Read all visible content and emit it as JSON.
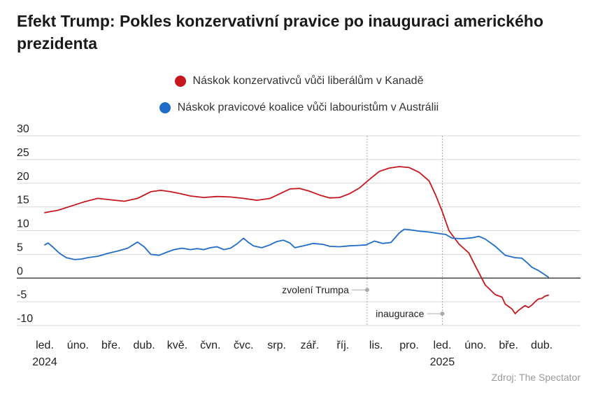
{
  "title": "Efekt Trump: Pokles konzervativní pravice po inauguraci amerického prezidenta",
  "source": "Zdroj: The Spectator",
  "colors": {
    "canada": "#c8161d",
    "australia": "#1f6dc9",
    "grid": "#d9d9d9",
    "zero": "#222222"
  },
  "chart_data": {
    "type": "line",
    "title": "Efekt Trump: Pokles konzervativní pravice po inauguraci amerického prezidenta",
    "ylim": [
      -10,
      30
    ],
    "yticks": [
      -10,
      -5,
      0,
      5,
      10,
      15,
      20,
      25,
      30
    ],
    "ytick_labels": [
      "-10",
      "-5",
      "0",
      "5",
      "10",
      "15",
      "20",
      "25",
      "30"
    ],
    "x_unit": "months since Jan 2024",
    "xlim": [
      0,
      15.3
    ],
    "xticks": [
      {
        "x": 0,
        "label": "led.",
        "year": "2024"
      },
      {
        "x": 1,
        "label": "úno."
      },
      {
        "x": 2,
        "label": "bře."
      },
      {
        "x": 3,
        "label": "dub."
      },
      {
        "x": 4,
        "label": "kvě."
      },
      {
        "x": 5,
        "label": "čvn."
      },
      {
        "x": 6,
        "label": "čvc."
      },
      {
        "x": 7,
        "label": "srp."
      },
      {
        "x": 8,
        "label": "zář."
      },
      {
        "x": 9,
        "label": "říj."
      },
      {
        "x": 10,
        "label": "lis."
      },
      {
        "x": 11,
        "label": "pro."
      },
      {
        "x": 12,
        "label": "led.",
        "year": "2025"
      },
      {
        "x": 13,
        "label": "úno."
      },
      {
        "x": 14,
        "label": "bře."
      },
      {
        "x": 15,
        "label": "dub."
      }
    ],
    "events": [
      {
        "x": 9.73,
        "label": "zvolení Trumpa",
        "y": -2.5
      },
      {
        "x": 12.0,
        "label": "inaugurace",
        "y": -7.5
      }
    ],
    "series": [
      {
        "name": "Náskok konzervativců vůči liberálům v Kanadě",
        "color": "#c8161d",
        "x": [
          0,
          0.4,
          0.8,
          1.2,
          1.6,
          2.0,
          2.4,
          2.8,
          3.2,
          3.5,
          3.8,
          4.1,
          4.4,
          4.8,
          5.2,
          5.6,
          6.0,
          6.4,
          6.8,
          7.1,
          7.4,
          7.7,
          8.0,
          8.3,
          8.6,
          8.9,
          9.2,
          9.5,
          9.8,
          10.1,
          10.4,
          10.7,
          11.0,
          11.3,
          11.6,
          11.8,
          12.0,
          12.2,
          12.5,
          12.8,
          13.0,
          13.3,
          13.6,
          13.8,
          13.9,
          14.0,
          14.1,
          14.2,
          14.3,
          14.4,
          14.5,
          14.6,
          14.7,
          14.8,
          14.9,
          15.0,
          15.1,
          15.2
        ],
        "values": [
          13.8,
          14.3,
          15.2,
          16.1,
          16.8,
          16.5,
          16.2,
          16.8,
          18.2,
          18.5,
          18.2,
          17.8,
          17.3,
          17.0,
          17.2,
          17.1,
          16.8,
          16.4,
          16.8,
          17.8,
          18.8,
          18.9,
          18.3,
          17.5,
          16.9,
          17.0,
          17.8,
          19.0,
          20.8,
          22.5,
          23.2,
          23.5,
          23.3,
          22.3,
          20.5,
          17.5,
          14.0,
          10.0,
          7.2,
          5.3,
          2.5,
          -1.5,
          -3.5,
          -4.0,
          -5.5,
          -6.0,
          -6.5,
          -7.5,
          -6.8,
          -6.3,
          -5.8,
          -6.2,
          -5.7,
          -5.0,
          -4.4,
          -4.3,
          -3.8,
          -3.6
        ]
      },
      {
        "name": "Náskok pravicové koalice vůči labouristům v Austrálii",
        "color": "#1f6dc9",
        "x": [
          0,
          0.1,
          0.25,
          0.45,
          0.65,
          0.9,
          1.1,
          1.3,
          1.6,
          1.9,
          2.2,
          2.5,
          2.8,
          3.0,
          3.2,
          3.45,
          3.7,
          3.9,
          4.15,
          4.4,
          4.6,
          4.8,
          5.0,
          5.2,
          5.4,
          5.6,
          5.8,
          6.0,
          6.15,
          6.3,
          6.55,
          6.8,
          7.0,
          7.2,
          7.4,
          7.55,
          7.8,
          8.1,
          8.4,
          8.6,
          8.9,
          9.2,
          9.5,
          9.7,
          9.95,
          10.2,
          10.45,
          10.7,
          10.85,
          11.0,
          11.3,
          11.6,
          11.9,
          12.1,
          12.3,
          12.6,
          12.9,
          13.1,
          13.3,
          13.6,
          13.9,
          14.2,
          14.4,
          14.55,
          14.7,
          14.9,
          15.2
        ],
        "values": [
          7.0,
          7.4,
          6.5,
          5.2,
          4.3,
          3.9,
          4.0,
          4.3,
          4.6,
          5.2,
          5.7,
          6.3,
          7.6,
          6.6,
          5.0,
          4.8,
          5.5,
          6.0,
          6.3,
          6.0,
          6.2,
          6.0,
          6.4,
          6.6,
          6.0,
          6.3,
          7.2,
          8.4,
          7.5,
          6.8,
          6.4,
          7.0,
          7.7,
          8.0,
          7.4,
          6.4,
          6.8,
          7.3,
          7.1,
          6.7,
          6.6,
          6.8,
          6.9,
          7.0,
          7.8,
          7.3,
          7.5,
          9.5,
          10.3,
          10.2,
          9.9,
          9.7,
          9.4,
          9.2,
          8.4,
          8.3,
          8.5,
          8.8,
          8.2,
          6.7,
          4.8,
          4.3,
          4.2,
          3.3,
          2.3,
          1.6,
          0.2
        ]
      }
    ]
  }
}
